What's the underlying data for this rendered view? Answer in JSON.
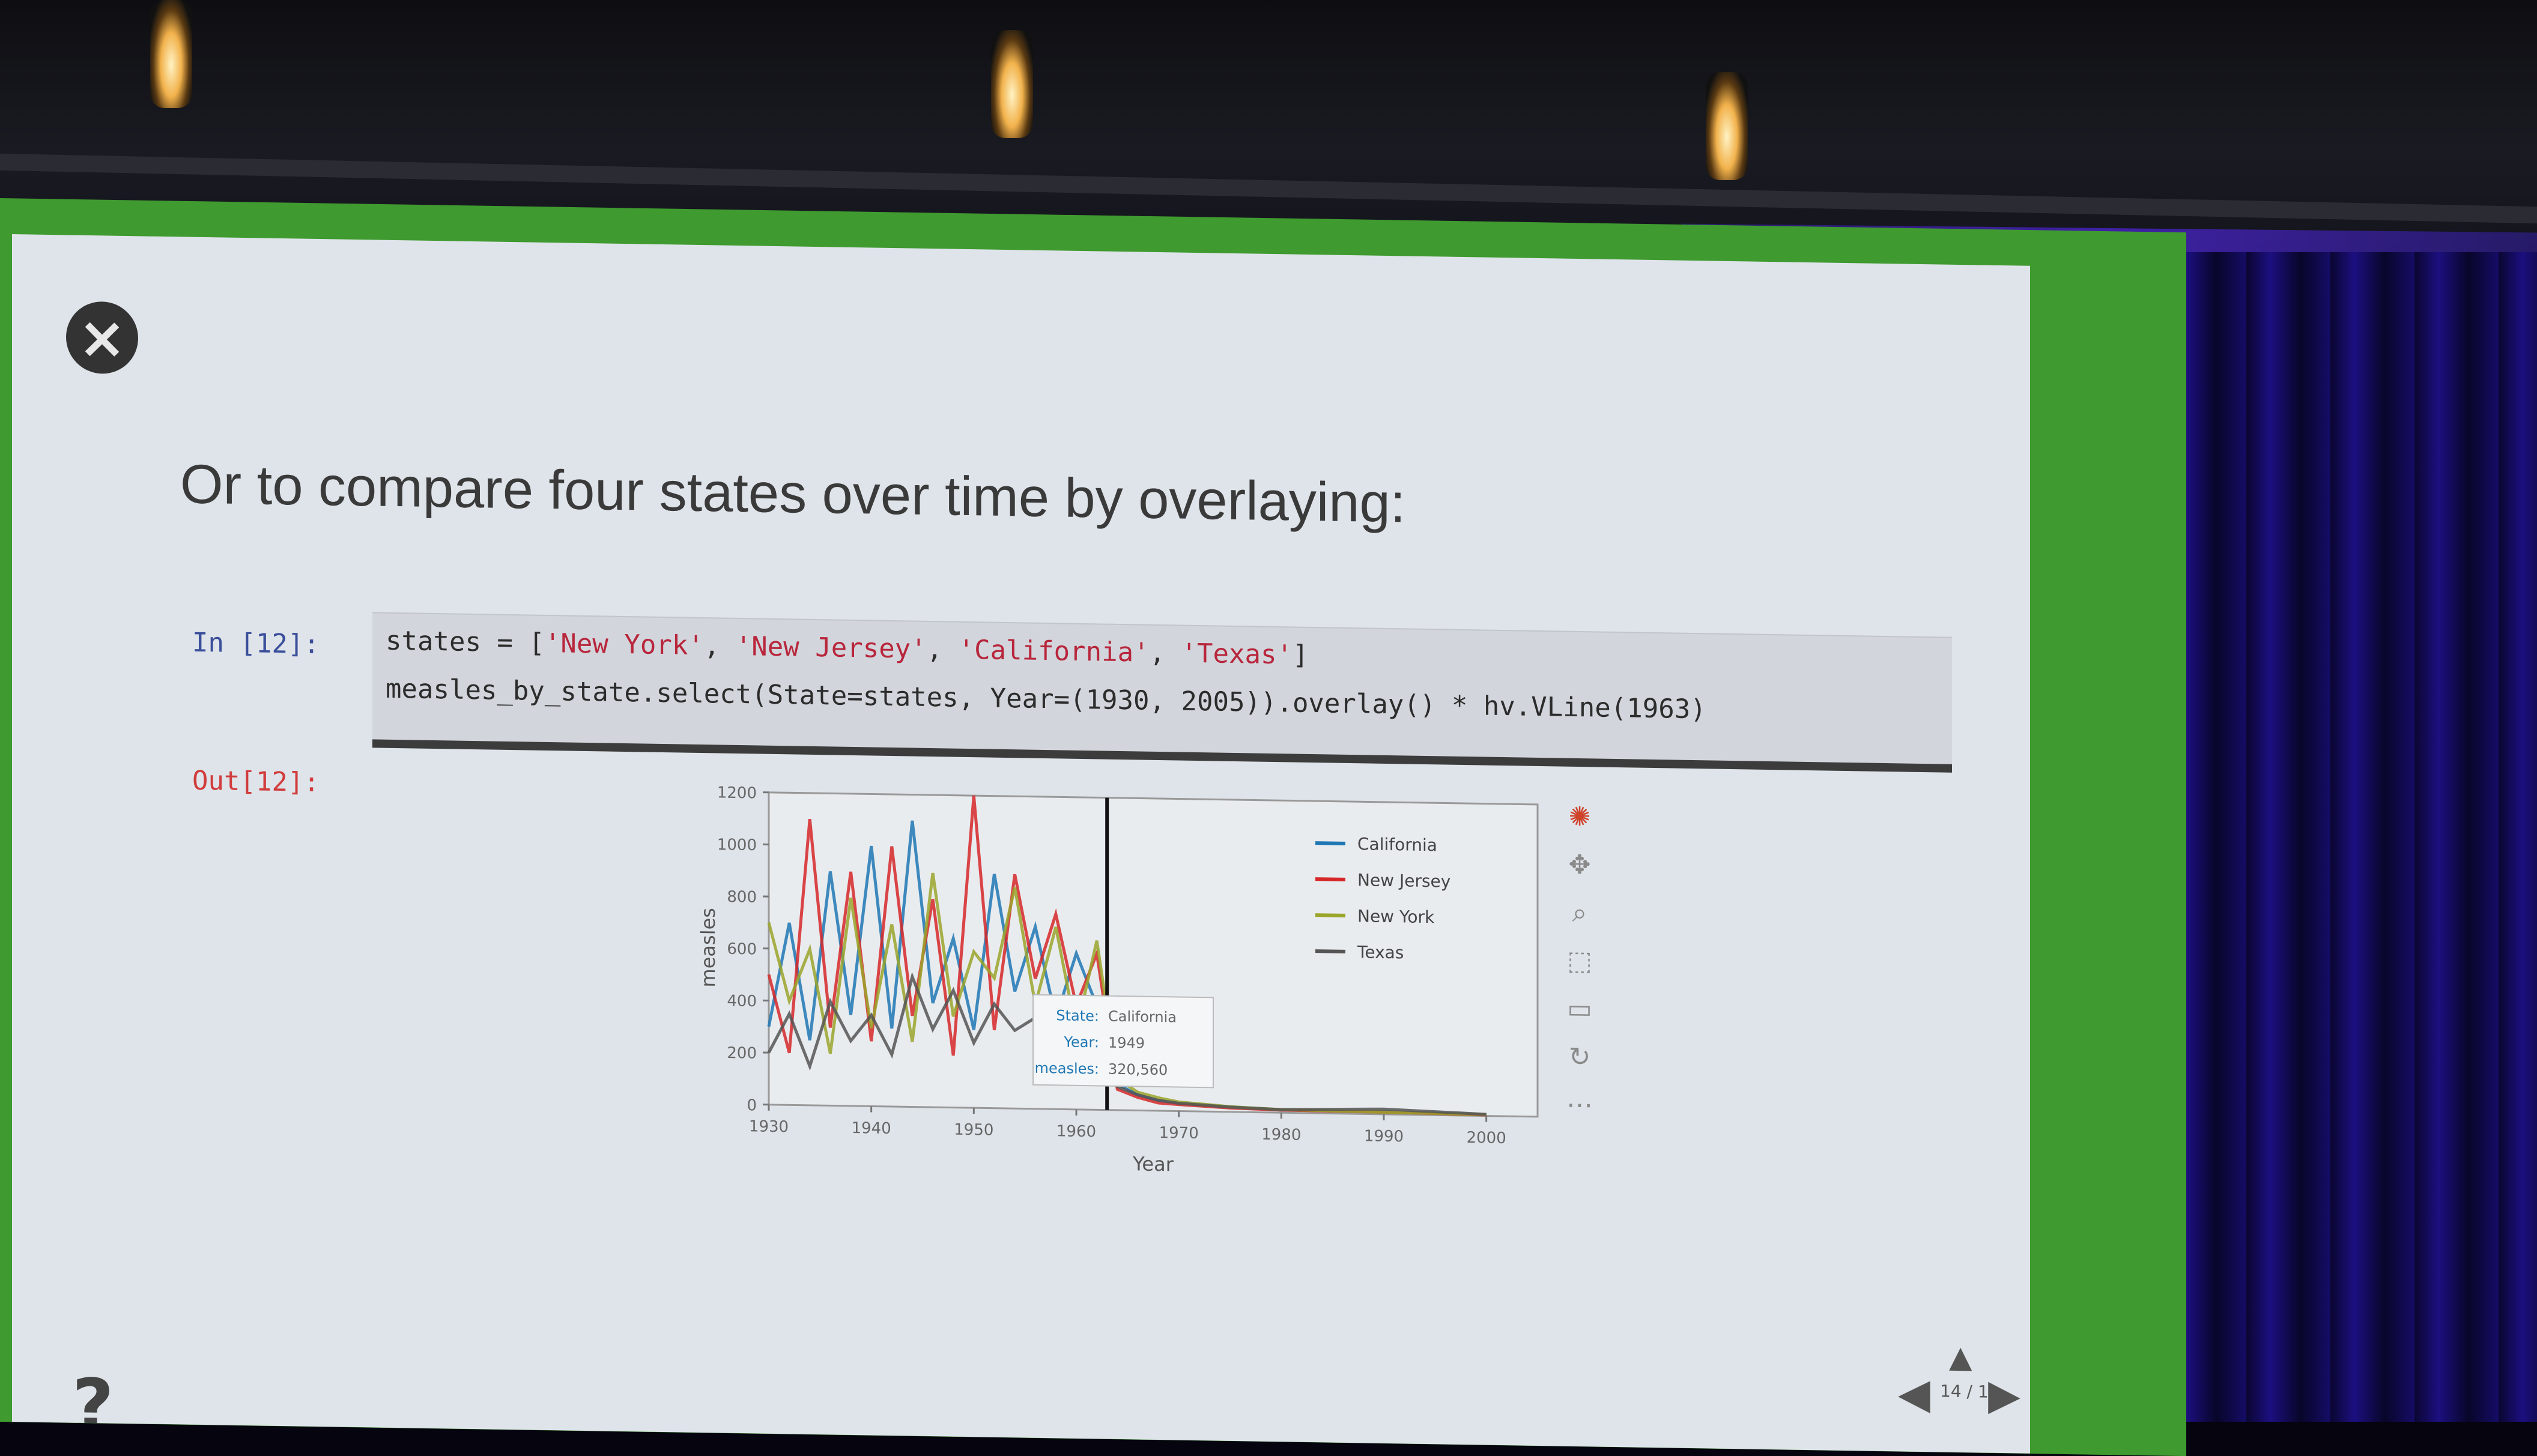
{
  "slide": {
    "heading": "Or to compare four states over time by overlaying:",
    "close_icon": "×",
    "help_label": "?"
  },
  "cell": {
    "in_prompt": "In [12]:",
    "out_prompt": "Out[12]:",
    "line1_prefix": "states = [",
    "line1_s1": "'New York'",
    "line1_s2": "'New Jersey'",
    "line1_s3": "'California'",
    "line1_s4": "'Texas'",
    "line1_suffix": "]",
    "line1_sep": ", ",
    "line2": "measles_by_state.select(State=states, Year=(1930, 2005)).overlay() * hv.VLine(1963)"
  },
  "chart_data": {
    "type": "line",
    "xlabel": "Year",
    "ylabel": "measles",
    "xlim": [
      1930,
      2005
    ],
    "ylim": [
      0,
      1200
    ],
    "yticks": [
      "0",
      "200",
      "400",
      "600",
      "800",
      "1000",
      "1200"
    ],
    "xticks": [
      "1930",
      "1940",
      "1950",
      "1960",
      "1970",
      "1980",
      "1990",
      "2000"
    ],
    "vline_x": 1963,
    "legend_position": "top-right",
    "series": [
      {
        "name": "California",
        "color": "#1f77b4",
        "x": [
          1930,
          1932,
          1934,
          1936,
          1938,
          1940,
          1942,
          1944,
          1946,
          1948,
          1950,
          1952,
          1954,
          1956,
          1958,
          1960,
          1962,
          1964,
          1966,
          1968,
          1970,
          1975,
          1980,
          1990,
          2000
        ],
        "y": [
          300,
          700,
          250,
          900,
          350,
          1000,
          300,
          1100,
          400,
          650,
          300,
          900,
          450,
          700,
          350,
          600,
          400,
          100,
          60,
          40,
          30,
          20,
          10,
          10,
          5
        ]
      },
      {
        "name": "New Jersey",
        "color": "#d62728",
        "x": [
          1930,
          1932,
          1934,
          1936,
          1938,
          1940,
          1942,
          1944,
          1946,
          1948,
          1950,
          1952,
          1954,
          1956,
          1958,
          1960,
          1962,
          1964,
          1966,
          1968,
          1970,
          1975,
          1980,
          1990,
          2000
        ],
        "y": [
          500,
          200,
          1100,
          300,
          900,
          250,
          1000,
          350,
          800,
          200,
          1200,
          300,
          900,
          500,
          750,
          400,
          600,
          80,
          50,
          30,
          25,
          15,
          10,
          8,
          4
        ]
      },
      {
        "name": "New York",
        "color": "#9aa52a",
        "x": [
          1930,
          1932,
          1934,
          1936,
          1938,
          1940,
          1942,
          1944,
          1946,
          1948,
          1950,
          1952,
          1954,
          1956,
          1958,
          1960,
          1962,
          1964,
          1966,
          1968,
          1970,
          1975,
          1980,
          1990,
          2000
        ],
        "y": [
          700,
          400,
          600,
          200,
          800,
          300,
          700,
          250,
          900,
          350,
          600,
          500,
          850,
          400,
          700,
          300,
          650,
          120,
          70,
          50,
          35,
          20,
          12,
          8,
          5
        ]
      },
      {
        "name": "Texas",
        "color": "#555555",
        "x": [
          1930,
          1932,
          1934,
          1936,
          1938,
          1940,
          1942,
          1944,
          1946,
          1948,
          1950,
          1952,
          1954,
          1956,
          1958,
          1960,
          1962,
          1964,
          1966,
          1968,
          1970,
          1975,
          1980,
          1990,
          2000
        ],
        "y": [
          200,
          350,
          150,
          400,
          250,
          350,
          200,
          500,
          300,
          450,
          250,
          400,
          300,
          350,
          250,
          300,
          280,
          90,
          60,
          40,
          30,
          18,
          12,
          20,
          6
        ]
      }
    ],
    "hover": {
      "State": "California",
      "Year": "1949",
      "measles": "320,560"
    }
  },
  "hover_labels": {
    "state_key": "State",
    "year_key": "Year",
    "measles_key": "measles"
  },
  "toolbar": {
    "icons": [
      "bokeh-logo-icon",
      "pan-icon",
      "wheel-zoom-icon",
      "box-zoom-icon",
      "save-icon",
      "reset-icon",
      "hover-icon"
    ]
  },
  "nav": {
    "up": "▲",
    "left": "◀",
    "right": "▶",
    "counter": "14 / 1"
  },
  "colors": {
    "frame_green": "#3f9a2f",
    "slide_bg": "#dfe4ea",
    "curtain_blue": "#1c0f80"
  }
}
